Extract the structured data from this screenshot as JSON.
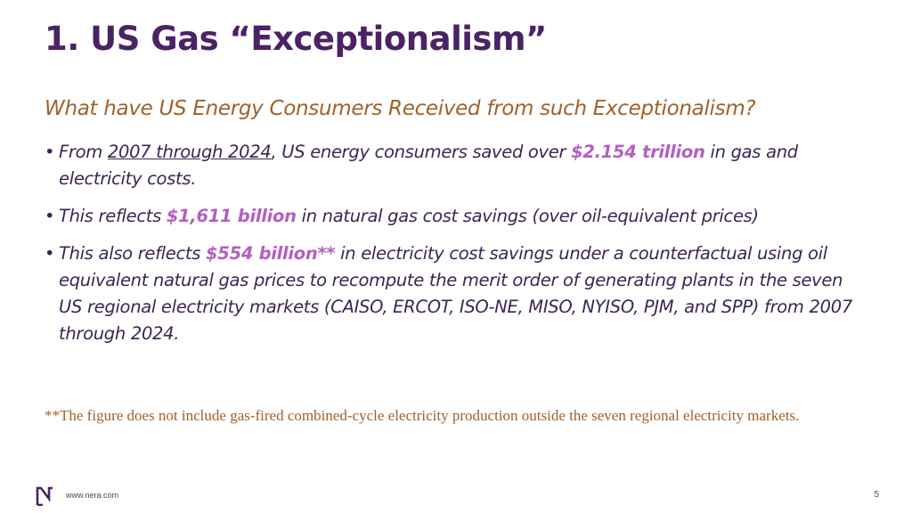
{
  "slide": {
    "title": "1. US Gas “Exceptionalism”",
    "subtitle": "What have US Energy Consumers Received from such Exceptionalism?"
  },
  "bullets": [
    {
      "pre": "From ",
      "underline": "2007 through 2024",
      "mid": ", US energy consumers saved over ",
      "highlight": "$2.154 trillion",
      "post": " in gas and electricity costs."
    },
    {
      "pre": "This reflects ",
      "highlight": "$1,611 billion",
      "post": " in natural gas cost savings (over oil-equivalent prices)"
    },
    {
      "pre": "This also reflects ",
      "highlight": "$554 billion**",
      "post": " in electricity cost savings under a counterfactual using oil equivalent natural gas prices to recompute the merit order of generating plants in the seven US regional electricity markets (CAISO, ERCOT, ISO-NE, MISO, NYISO, PJM, and SPP) from 2007 through 2024."
    }
  ],
  "footnote": "**The figure does not include gas-fired combined-cycle electricity production outside the seven regional electricity markets.",
  "footer": {
    "website": "www.nera.com",
    "page_number": "5",
    "logo_icon": "nera-logo-icon"
  },
  "colors": {
    "title": "#4b2266",
    "subtitle": "#a0612a",
    "body": "#3d2552",
    "highlight": "#b35fc1",
    "footnote": "#a0612a"
  }
}
